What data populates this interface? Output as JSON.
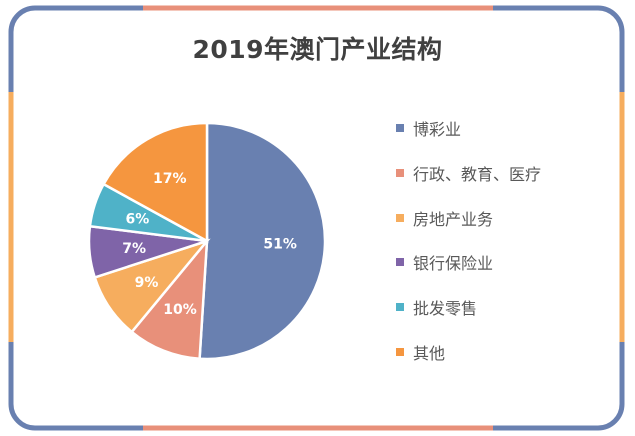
{
  "colors": {
    "blue": "#6980b0",
    "salmon": "#e8907a",
    "light_orange": "#f6ad5e",
    "purple": "#7f64a8",
    "teal": "#4fb2c8",
    "orange": "#f5963f"
  },
  "chart_data": {
    "type": "pie",
    "title": "2019年澳门产业结构",
    "legend_position": "right",
    "categories": [
      "博彩业",
      "行政、教育、医疗",
      "房地产业务",
      "银行保险业",
      "批发零售",
      "其他"
    ],
    "values": [
      51,
      10,
      9,
      7,
      6,
      17
    ],
    "labels": [
      "51%",
      "10%",
      "9%",
      "7%",
      "6%",
      "17%"
    ],
    "colors": [
      "#6980b0",
      "#e8907a",
      "#f6ad5e",
      "#7f64a8",
      "#4fb2c8",
      "#f5963f"
    ]
  }
}
